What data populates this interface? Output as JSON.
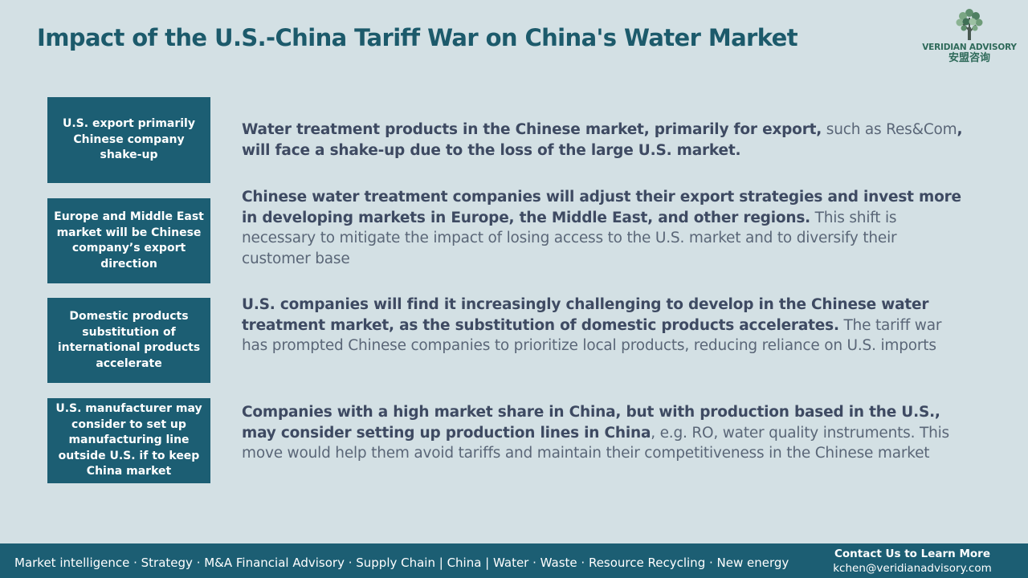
{
  "header": {
    "title": "Impact of the U.S.-China Tariff War on China's Water Market"
  },
  "logo": {
    "icon": "tree-icon",
    "name": "VERIDIAN ADVISORY",
    "chinese_name": "安盟咨询"
  },
  "rows": [
    {
      "box_label": "U.S. export primarily Chinese company shake-up",
      "parts": [
        {
          "text": "Water treatment products in the Chinese market, primarily for export,",
          "bold": true
        },
        {
          "text": " such as Res&Com",
          "bold": false
        },
        {
          "text": ", will face a shake-up due to the loss of the large U.S. market.",
          "bold": true
        }
      ]
    },
    {
      "box_label": "Europe and Middle East market  will be Chinese company’s export direction",
      "parts": [
        {
          "text": "Chinese water treatment companies will adjust their export strategies and invest more in developing markets in Europe, the Middle East, and other regions.",
          "bold": true
        },
        {
          "text": " This shift is necessary to mitigate the impact of losing access to the U.S. market and to diversify their customer base",
          "bold": false
        }
      ]
    },
    {
      "box_label": "Domestic products substitution of international products accelerate",
      "parts": [
        {
          "text": "U.S. companies will find it increasingly challenging to develop in the Chinese water treatment market, as the substitution of domestic products accelerates.",
          "bold": true
        },
        {
          "text": " The tariff war has prompted Chinese companies to prioritize local products, reducing reliance on U.S. imports",
          "bold": false
        }
      ]
    },
    {
      "box_label": "U.S. manufacturer  may consider to set up manufacturing line outside U.S. if to keep China market",
      "parts": [
        {
          "text": "Companies with a high market share in China, but with production based in the U.S., may consider setting up production lines in China",
          "bold": true
        },
        {
          "text": ", e.g. RO, water quality instruments. This move would help them avoid tariffs and maintain their competitiveness in the Chinese market",
          "bold": false
        }
      ]
    }
  ],
  "footer": {
    "services": "Market intelligence · Strategy · M&A Financial Advisory · Supply Chain | China  | Water · Waste · Resource Recycling · New energy",
    "contact_label": "Contact Us to Learn More",
    "email": "kchen@veridianadvisory.com"
  },
  "colors": {
    "background": "#d3e0e4",
    "accent": "#1c5e73",
    "title": "#1c5a6b",
    "logo_green": "#2f6a5a"
  }
}
